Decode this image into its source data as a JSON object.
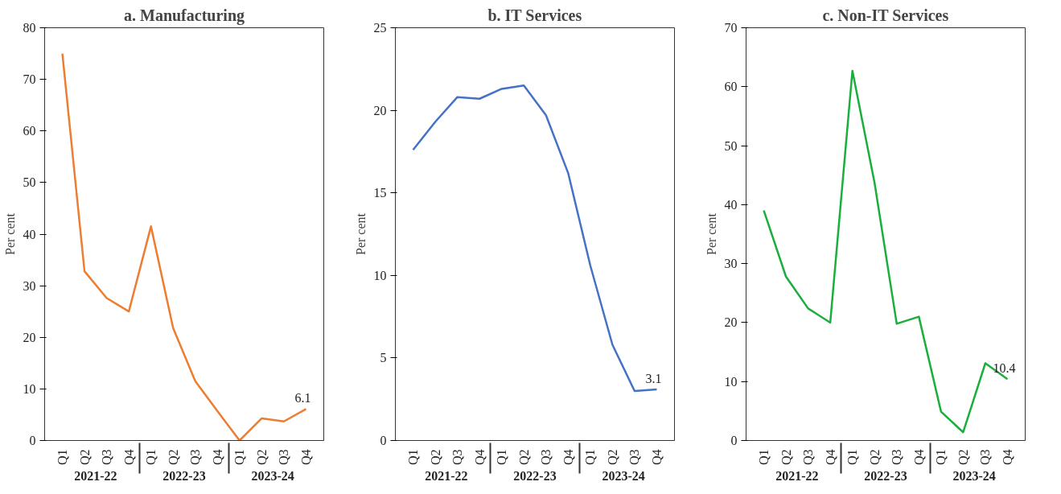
{
  "chart_data": [
    {
      "type": "line",
      "title": "a. Manufacturing",
      "ylabel": "Per cent",
      "categories": [
        "Q1",
        "Q2",
        "Q3",
        "Q4",
        "Q1",
        "Q2",
        "Q3",
        "Q4",
        "Q1",
        "Q2",
        "Q3",
        "Q4"
      ],
      "annotations": [
        "2021-22",
        "2022-23",
        "2023-24"
      ],
      "ylim": [
        0,
        80
      ],
      "yticks": [
        0,
        10,
        20,
        30,
        40,
        50,
        60,
        70,
        80
      ],
      "series": [
        {
          "color": "#ed7d31",
          "values": [
            75,
            32.8,
            27.6,
            25,
            41.5,
            21.8,
            11.5,
            5.7,
            0,
            4.3,
            3.7,
            6.1
          ],
          "value_labels": [
            null,
            null,
            null,
            null,
            null,
            null,
            null,
            null,
            null,
            null,
            null,
            "6.1"
          ]
        }
      ]
    },
    {
      "type": "line",
      "title": "b. IT Services",
      "ylabel": "Per cent",
      "categories": [
        "Q1",
        "Q2",
        "Q3",
        "Q4",
        "Q1",
        "Q2",
        "Q3",
        "Q4",
        "Q1",
        "Q2",
        "Q3",
        "Q4"
      ],
      "annotations": [
        "2021-22",
        "2022-23",
        "2023-24"
      ],
      "ylim": [
        0,
        25
      ],
      "yticks": [
        0,
        5,
        10,
        15,
        20,
        25
      ],
      "series": [
        {
          "color": "#4472c4",
          "values": [
            17.6,
            19.3,
            20.8,
            20.7,
            21.3,
            21.5,
            19.7,
            16.2,
            10.6,
            5.8,
            3.0,
            3.1
          ],
          "value_labels": [
            null,
            null,
            null,
            null,
            null,
            null,
            null,
            null,
            null,
            null,
            null,
            "3.1"
          ]
        }
      ]
    },
    {
      "type": "line",
      "title": "c. Non-IT Services",
      "ylabel": "Per cent",
      "categories": [
        "Q1",
        "Q2",
        "Q3",
        "Q4",
        "Q1",
        "Q2",
        "Q3",
        "Q4",
        "Q1",
        "Q2",
        "Q3",
        "Q4"
      ],
      "annotations": [
        "2021-22",
        "2022-23",
        "2023-24"
      ],
      "ylim": [
        0,
        70
      ],
      "yticks": [
        0,
        10,
        20,
        30,
        40,
        50,
        60,
        70
      ],
      "series": [
        {
          "color": "#1aaf3c",
          "values": [
            39,
            27.8,
            22.4,
            20,
            62.7,
            43.7,
            19.8,
            21,
            4.9,
            1.4,
            13.1,
            10.4
          ],
          "value_labels": [
            null,
            null,
            null,
            null,
            null,
            null,
            null,
            null,
            null,
            null,
            null,
            "10.4"
          ]
        }
      ]
    }
  ]
}
